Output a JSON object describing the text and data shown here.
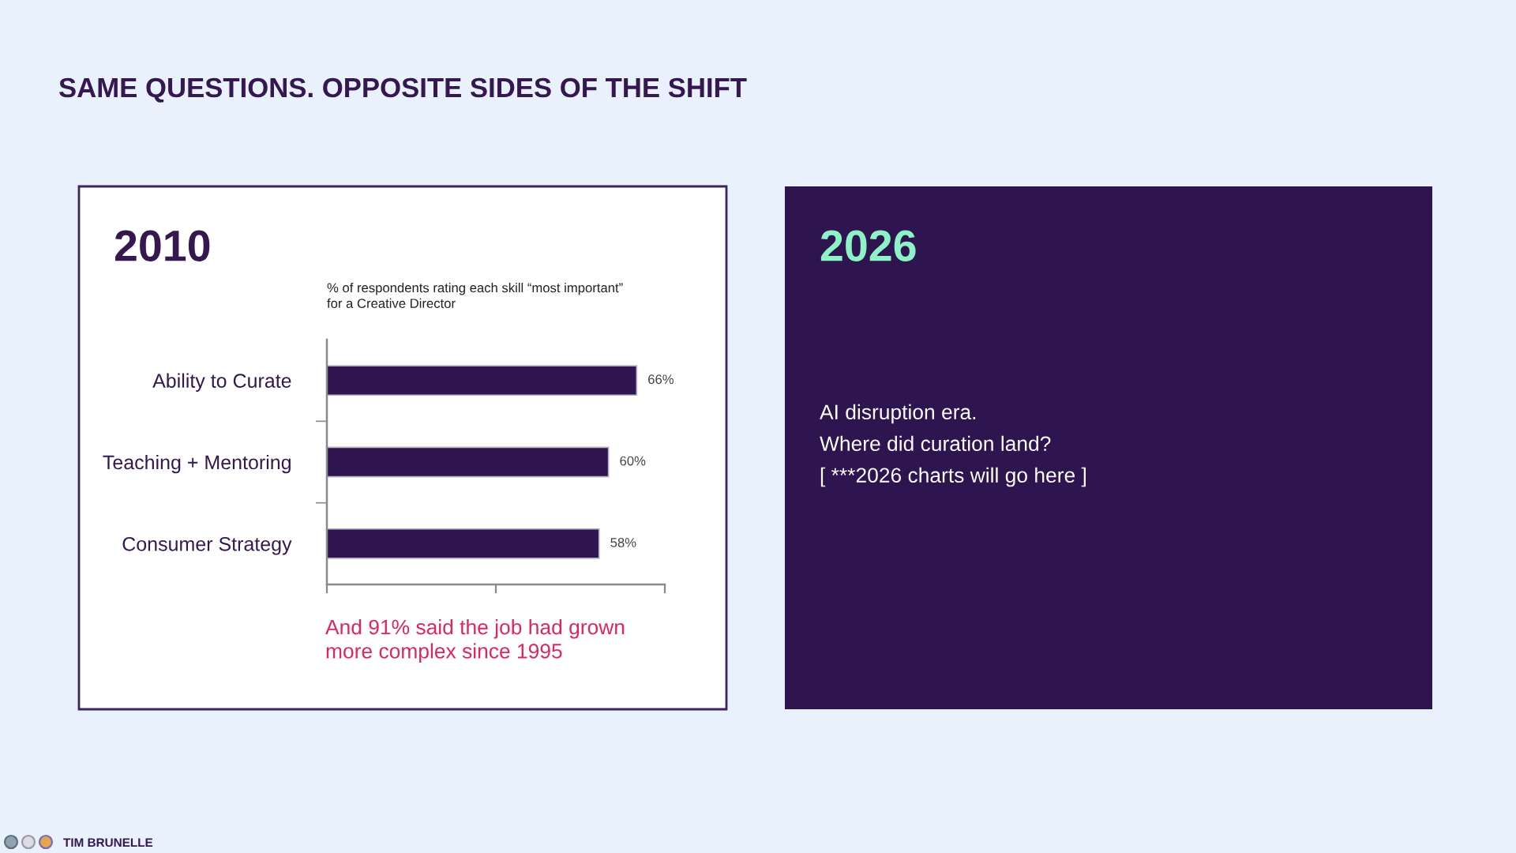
{
  "chart_data": [
    {
      "type": "bar",
      "orientation": "horizontal",
      "title": "2010",
      "subtitle": "% of respondents rating each skill “most important”\nfor a Creative Director",
      "categories": [
        "Ability to Curate",
        "Teaching + Mentoring",
        "Consumer Strategy"
      ],
      "values": [
        66,
        60,
        58
      ],
      "value_labels": [
        "66%",
        "60%",
        "58%"
      ],
      "color": "#2f1650",
      "xlim": [
        0,
        72
      ],
      "xticks": [
        {
          "value": 0,
          "label": null
        },
        {
          "value": 36,
          "label": null
        },
        {
          "value": 72,
          "label": null
        }
      ],
      "tick_labels": "y",
      "annotations": [
        "And 91% said the job had grown\nmore complex since 1995",
        "SAME QUESTIONS. OPPOSITE SIDES OF THE SHIFT",
        "TIM BRUNELLE"
      ]
    },
    {
      "type": "other",
      "title": "2026",
      "annotations": [
        "AI disruption era.",
        "Where did curation land?",
        "[ ***2026 charts will go here ]"
      ]
    }
  ]
}
